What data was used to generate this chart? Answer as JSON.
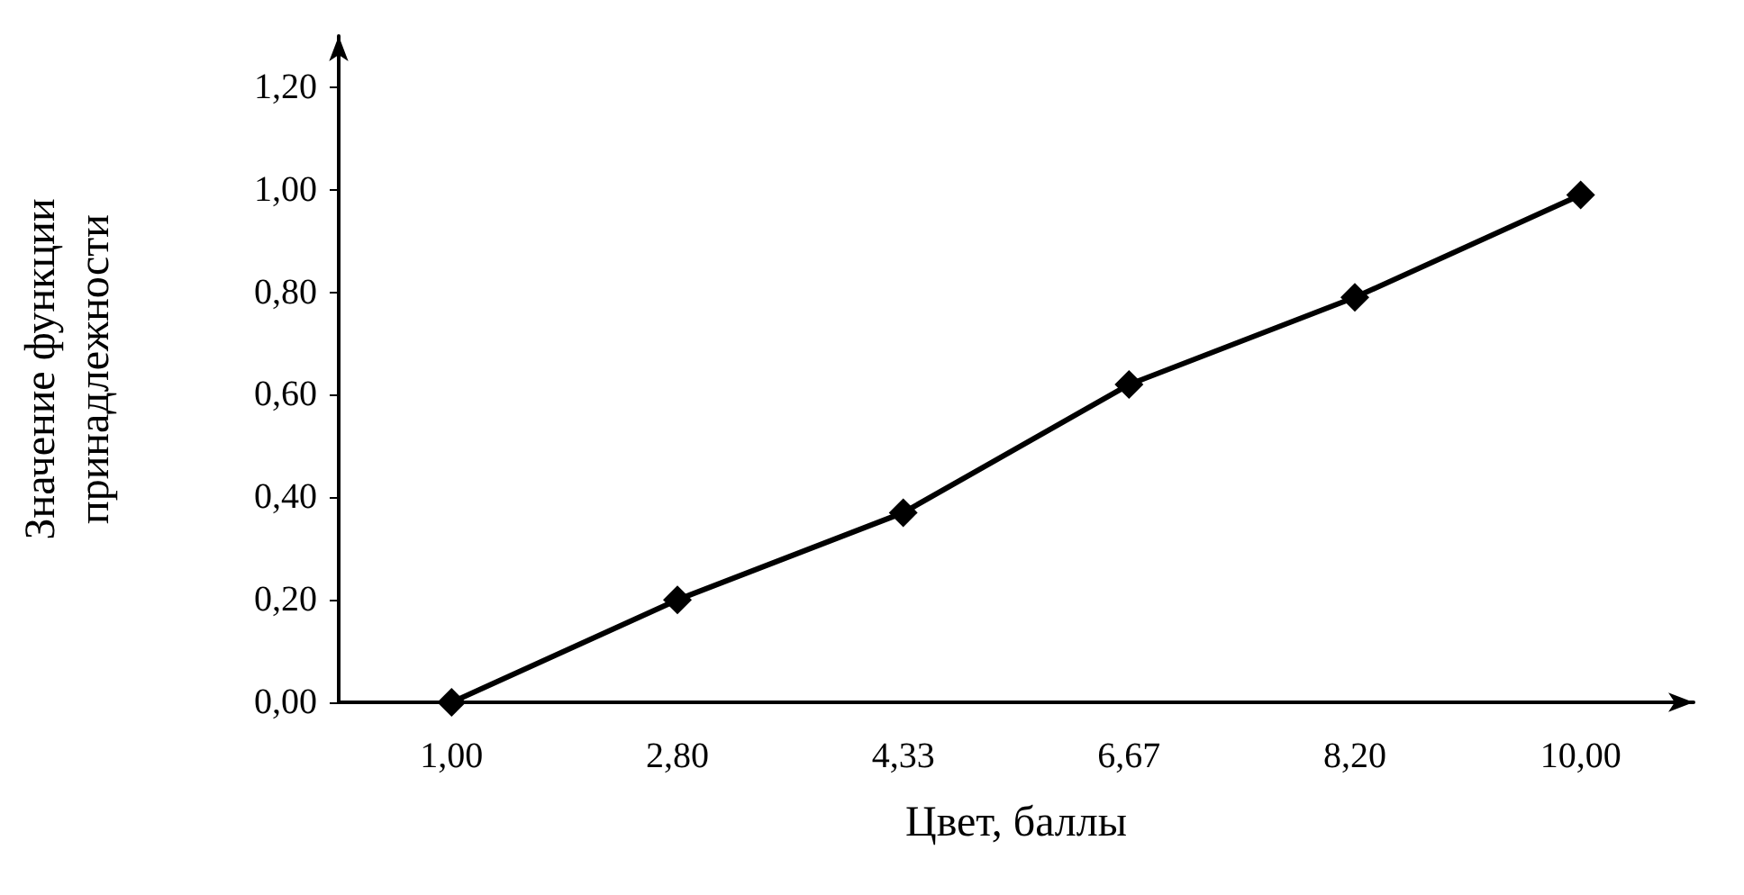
{
  "chart_data": {
    "type": "line",
    "xlabel": "Цвет, баллы",
    "ylabel": "Значение функции\nпринадлежности",
    "categories": [
      "1,00",
      "2,80",
      "4,33",
      "6,67",
      "8,20",
      "10,00"
    ],
    "series": [
      {
        "color": "#000000",
        "values": [
          0,
          0.2,
          0.37,
          0.62,
          0.79,
          0.99
        ]
      }
    ],
    "ylim": [
      0,
      1.3
    ],
    "yticks": [
      {
        "value": 0,
        "label": "0,00"
      },
      {
        "value": 0.2,
        "label": "0,20"
      },
      {
        "value": 0.4,
        "label": "0,40"
      },
      {
        "value": 0.6,
        "label": "0,60"
      },
      {
        "value": 0.8,
        "label": "0,80"
      },
      {
        "value": 1,
        "label": "1,00"
      },
      {
        "value": 1.2,
        "label": "1,20"
      }
    ],
    "grid": false,
    "marker": "diamond",
    "line_style": "solid"
  }
}
